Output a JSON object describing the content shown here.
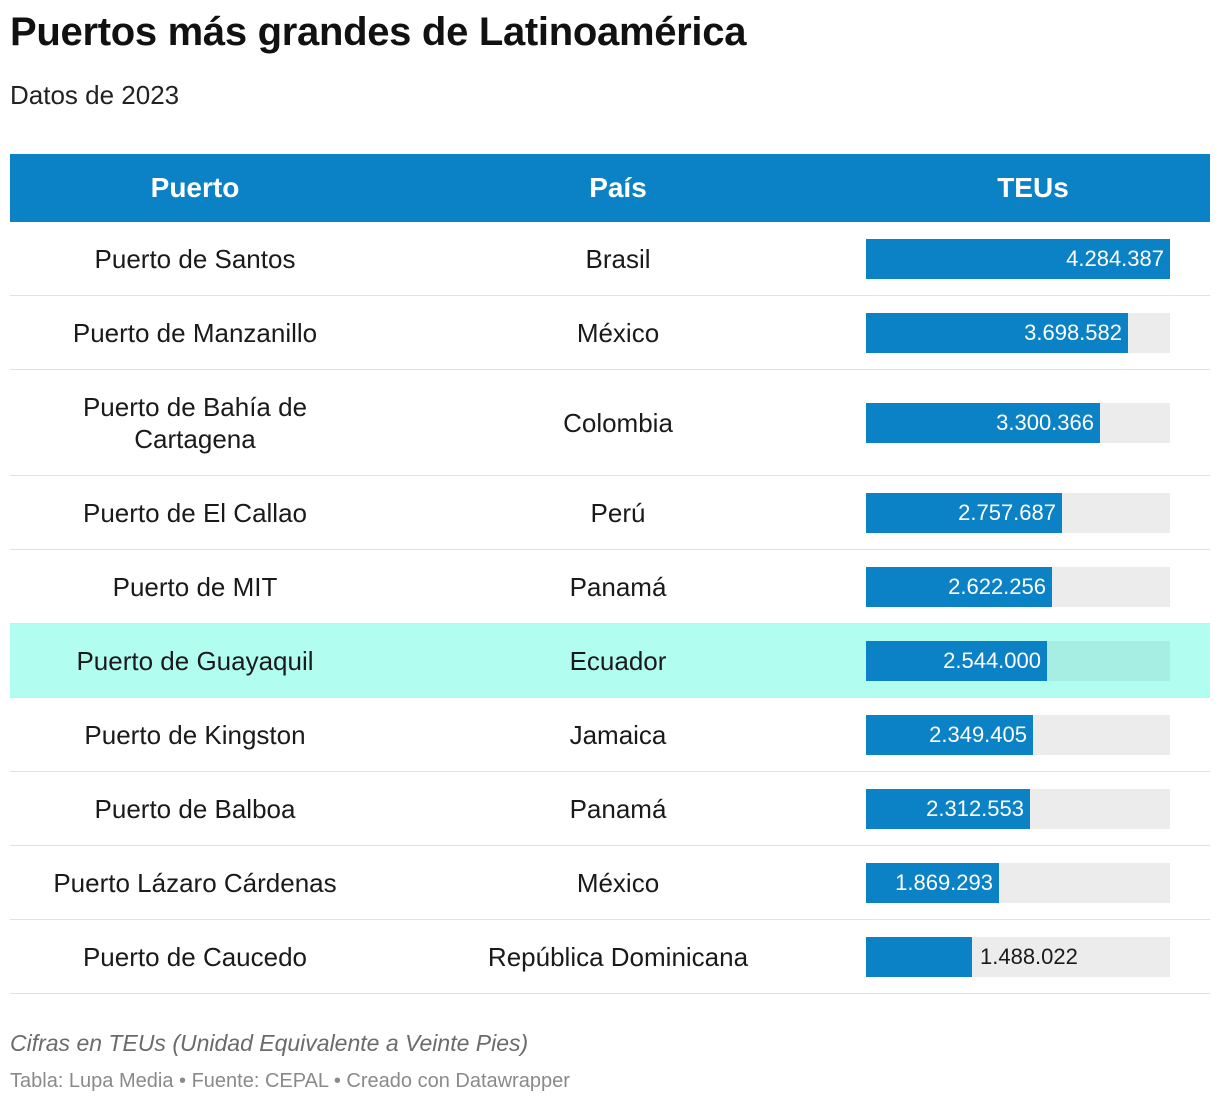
{
  "title": "Puertos más grandes de Latinoamérica",
  "subtitle": "Datos de 2023",
  "table": {
    "headers": [
      "Puerto",
      "País",
      "TEUs"
    ]
  },
  "colors": {
    "header_bg": "#0b82c6",
    "bar": "#0b82c6",
    "bar_bg": "#ececec",
    "highlight_row": "#b1fdf0"
  },
  "chart_data": {
    "type": "table",
    "title": "Puertos más grandes de Latinoamérica",
    "subtitle": "Datos de 2023",
    "columns": [
      "Puerto",
      "País",
      "TEUs"
    ],
    "max": 4284387,
    "rows": [
      {
        "puerto": "Puerto de Santos",
        "pais": "Brasil",
        "teus": 4284387,
        "label": "4.284.387"
      },
      {
        "puerto": "Puerto de Manzanillo",
        "pais": "México",
        "teus": 3698582,
        "label": "3.698.582"
      },
      {
        "puerto": "Puerto de Bahía de Cartagena",
        "pais": "Colombia",
        "teus": 3300366,
        "label": "3.300.366"
      },
      {
        "puerto": "Puerto de El Callao",
        "pais": "Perú",
        "teus": 2757687,
        "label": "2.757.687"
      },
      {
        "puerto": "Puerto de MIT",
        "pais": "Panamá",
        "teus": 2622256,
        "label": "2.622.256"
      },
      {
        "puerto": "Puerto de Guayaquil",
        "pais": "Ecuador",
        "teus": 2544000,
        "label": "2.544.000",
        "highlight": true
      },
      {
        "puerto": "Puerto de Kingston",
        "pais": "Jamaica",
        "teus": 2349405,
        "label": "2.349.405"
      },
      {
        "puerto": "Puerto de Balboa",
        "pais": "Panamá",
        "teus": 2312553,
        "label": "2.312.553"
      },
      {
        "puerto": "Puerto Lázaro Cárdenas",
        "pais": "México",
        "teus": 1869293,
        "label": "1.869.293"
      },
      {
        "puerto": "Puerto de Caucedo",
        "pais": "República Dominicana",
        "teus": 1488022,
        "label": "1.488.022"
      }
    ]
  },
  "notes": "Cifras en TEUs (Unidad Equivalente a Veinte Pies)",
  "footer": "Tabla: Lupa Media • Fuente: CEPAL • Creado con Datawrapper"
}
